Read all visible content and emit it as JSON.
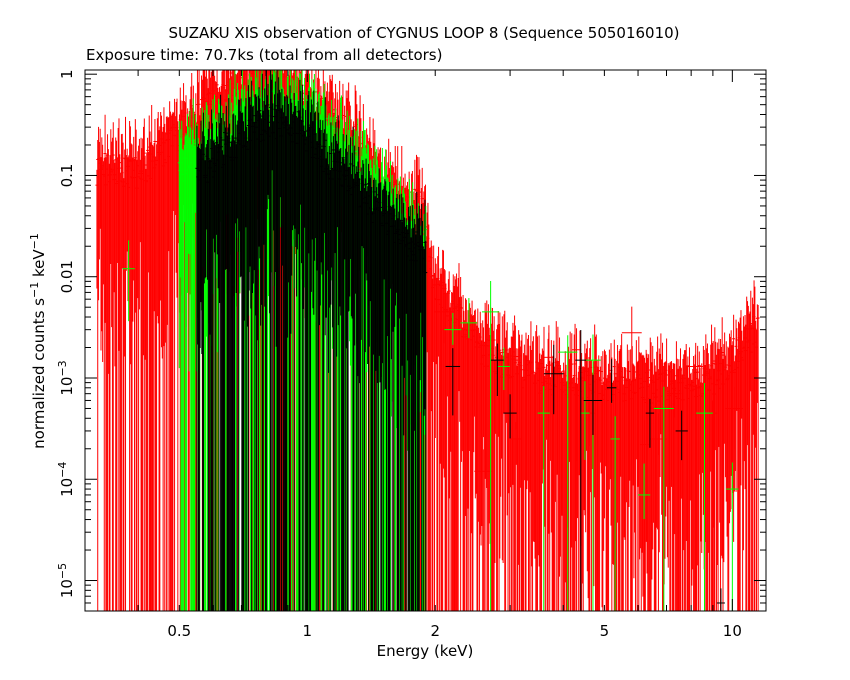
{
  "chart_data": {
    "type": "scatter",
    "title": "SUZAKU XIS observation of CYGNUS LOOP 8 (Sequence 505016010)",
    "subtitle": "Exposure time: 70.7ks (total from all detectors)",
    "xlabel": "Energy (keV)",
    "ylabel": {
      "text": "normalized counts s",
      "sup1": "−1",
      "mid": " keV",
      "sup2": "−1"
    },
    "xscale": "log",
    "yscale": "log",
    "xlim": [
      0.3,
      12
    ],
    "ylim": [
      5e-06,
      1.1
    ],
    "x_ticks": [
      {
        "value": 0.5,
        "label": "0.5"
      },
      {
        "value": 1,
        "label": "1"
      },
      {
        "value": 2,
        "label": "2"
      },
      {
        "value": 5,
        "label": "5"
      },
      {
        "value": 10,
        "label": "10"
      }
    ],
    "y_ticks": [
      {
        "value": 1,
        "base": "1",
        "exp": ""
      },
      {
        "value": 0.1,
        "base": "0.1",
        "exp": ""
      },
      {
        "value": 0.01,
        "base": "0.01",
        "exp": ""
      },
      {
        "value": 0.001,
        "base": "10",
        "exp": "−3"
      },
      {
        "value": 0.0001,
        "base": "10",
        "exp": "−4"
      },
      {
        "value": 1e-05,
        "base": "10",
        "exp": "−5"
      }
    ],
    "grid": false,
    "series": [
      {
        "color": "#ff0000",
        "profile": [
          [
            0.32,
            0.12
          ],
          [
            0.4,
            0.1
          ],
          [
            0.5,
            0.25
          ],
          [
            0.6,
            0.55
          ],
          [
            0.7,
            0.8
          ],
          [
            0.82,
            1.0
          ],
          [
            0.95,
            0.7
          ],
          [
            1.1,
            0.4
          ],
          [
            1.3,
            0.22
          ],
          [
            1.5,
            0.08
          ],
          [
            1.7,
            0.05
          ],
          [
            1.85,
            0.05
          ],
          [
            2.0,
            0.008
          ],
          [
            2.5,
            0.002
          ],
          [
            3.5,
            0.001
          ],
          [
            5,
            0.0009
          ],
          [
            7,
            0.0008
          ],
          [
            9,
            0.001
          ],
          [
            11.5,
            0.003
          ]
        ],
        "points": [
          [
            2.1,
            0.0045
          ],
          [
            2.3,
            0.003
          ],
          [
            2.6,
            0.00012
          ],
          [
            3.1,
            0.00025
          ],
          [
            3.7,
            0.0016
          ],
          [
            4.3,
            0.0019
          ],
          [
            4.6,
            0.00045
          ],
          [
            5.8,
            0.0028
          ],
          [
            6.2,
            0.00022
          ],
          [
            6.7,
            0.00025
          ],
          [
            7.3,
            0.0007
          ],
          [
            8.2,
            0.0013
          ],
          [
            9.0,
            0.00045
          ],
          [
            10.1,
            0.0005
          ]
        ]
      },
      {
        "color": "#00ff00",
        "profile": [
          [
            0.5,
            0.12
          ],
          [
            0.6,
            0.22
          ],
          [
            0.7,
            0.35
          ],
          [
            0.82,
            0.5
          ],
          [
            0.95,
            0.38
          ],
          [
            1.1,
            0.25
          ],
          [
            1.3,
            0.12
          ],
          [
            1.5,
            0.06
          ],
          [
            1.7,
            0.03
          ],
          [
            1.9,
            0.02
          ]
        ],
        "points": [
          [
            0.38,
            0.012
          ],
          [
            2.2,
            0.003
          ],
          [
            2.4,
            0.0035
          ],
          [
            2.7,
            0.0045
          ],
          [
            2.9,
            0.0013
          ],
          [
            3.6,
            0.00045
          ],
          [
            4.1,
            0.0018
          ],
          [
            4.5,
            0.00045
          ],
          [
            4.7,
            0.0015
          ],
          [
            5.3,
            0.00025
          ],
          [
            6.2,
            7e-05
          ],
          [
            6.9,
            0.0005
          ],
          [
            8.6,
            0.00045
          ],
          [
            10.0,
            8e-05
          ]
        ]
      },
      {
        "color": "#000000",
        "profile": [
          [
            0.55,
            0.1
          ],
          [
            0.7,
            0.25
          ],
          [
            0.82,
            0.35
          ],
          [
            0.95,
            0.3
          ],
          [
            1.1,
            0.15
          ],
          [
            1.3,
            0.08
          ],
          [
            1.5,
            0.04
          ],
          [
            1.7,
            0.025
          ],
          [
            1.9,
            0.015
          ]
        ],
        "points": [
          [
            2.2,
            0.0013
          ],
          [
            2.8,
            0.0015
          ],
          [
            3.0,
            0.00045
          ],
          [
            3.8,
            0.0011
          ],
          [
            4.4,
            0.0015
          ],
          [
            4.7,
            0.0006
          ],
          [
            5.2,
            0.0008
          ],
          [
            6.4,
            0.00045
          ],
          [
            7.6,
            0.0003
          ],
          [
            9.4,
            6e-06
          ]
        ]
      }
    ]
  }
}
